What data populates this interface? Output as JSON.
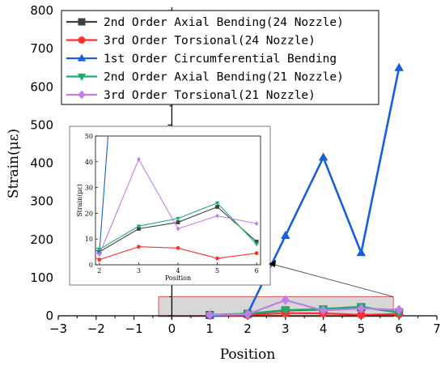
{
  "chart_data": {
    "type": "line",
    "xlabel": "Position",
    "ylabel": "Strain(με)",
    "xlim": [
      -3,
      7
    ],
    "ylim": [
      0,
      800
    ],
    "xticks": [
      -3,
      -2,
      -1,
      0,
      1,
      2,
      3,
      4,
      5,
      6,
      7
    ],
    "yticks": [
      0,
      100,
      200,
      300,
      400,
      500,
      600,
      700,
      800
    ],
    "legend_position": "top-left",
    "series": [
      {
        "name": "2nd Order Axial Bending(24 Nozzle)",
        "color": "#404040",
        "marker": "square",
        "x": [
          1,
          2,
          3,
          4,
          5,
          6
        ],
        "y": [
          2,
          5,
          14,
          16.5,
          22.5,
          9
        ]
      },
      {
        "name": "3rd Order Torsional(24 Nozzle)",
        "color": "#ff3030",
        "marker": "circle",
        "x": [
          1,
          2,
          3,
          4,
          5,
          6
        ],
        "y": [
          1,
          2,
          7,
          6.5,
          2.5,
          4.5
        ]
      },
      {
        "name": "1st Order Circumferential Bending",
        "color": "#1560d8",
        "marker": "triangle-up",
        "x": [
          1,
          2,
          3,
          4,
          5,
          6
        ],
        "y": [
          0,
          5,
          210,
          415,
          165,
          650
        ]
      },
      {
        "name": "2nd Order Axial Bending(21 Nozzle)",
        "color": "#18b06e",
        "marker": "triangle-down",
        "x": [
          1,
          2,
          3,
          4,
          5,
          6
        ],
        "y": [
          2.5,
          6,
          15,
          18,
          24,
          8
        ]
      },
      {
        "name": "3rd Order Torsional(21 Nozzle)",
        "color": "#c07ee6",
        "marker": "diamond",
        "x": [
          1,
          2,
          3,
          4,
          5,
          6
        ],
        "y": [
          2,
          4,
          41,
          14,
          19,
          16
        ]
      }
    ],
    "inset": {
      "xlabel": "Position",
      "ylabel": "Strain(με)",
      "xlim": [
        1.9,
        6.1
      ],
      "ylim": [
        0,
        50
      ],
      "xticks": [
        2,
        3,
        4,
        5,
        6
      ],
      "yticks": [
        0,
        10,
        20,
        30,
        40,
        50
      ]
    }
  }
}
